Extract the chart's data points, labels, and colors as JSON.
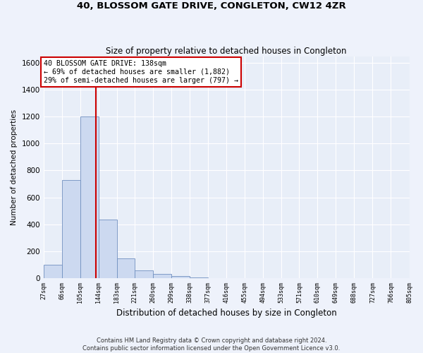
{
  "title": "40, BLOSSOM GATE DRIVE, CONGLETON, CW12 4ZR",
  "subtitle": "Size of property relative to detached houses in Congleton",
  "xlabel": "Distribution of detached houses by size in Congleton",
  "ylabel": "Number of detached properties",
  "bin_edges": [
    27,
    66,
    105,
    144,
    183,
    221,
    260,
    299,
    338,
    377,
    416,
    455,
    494,
    533,
    571,
    610,
    649,
    688,
    727,
    766,
    805
  ],
  "bar_heights": [
    100,
    730,
    1200,
    435,
    145,
    55,
    30,
    15,
    5,
    0,
    0,
    0,
    0,
    0,
    0,
    0,
    0,
    0,
    0,
    0
  ],
  "bar_color": "#ccd9f0",
  "bar_edge_color": "#7090c0",
  "red_line_x": 138,
  "ylim": [
    0,
    1650
  ],
  "yticks": [
    0,
    200,
    400,
    600,
    800,
    1000,
    1200,
    1400,
    1600
  ],
  "annotation_text": "40 BLOSSOM GATE DRIVE: 138sqm\n← 69% of detached houses are smaller (1,882)\n29% of semi-detached houses are larger (797) →",
  "annotation_box_color": "#cc0000",
  "footer1": "Contains HM Land Registry data © Crown copyright and database right 2024.",
  "footer2": "Contains public sector information licensed under the Open Government Licence v3.0.",
  "bg_color": "#eef2fb",
  "plot_bg_color": "#e8eef8"
}
